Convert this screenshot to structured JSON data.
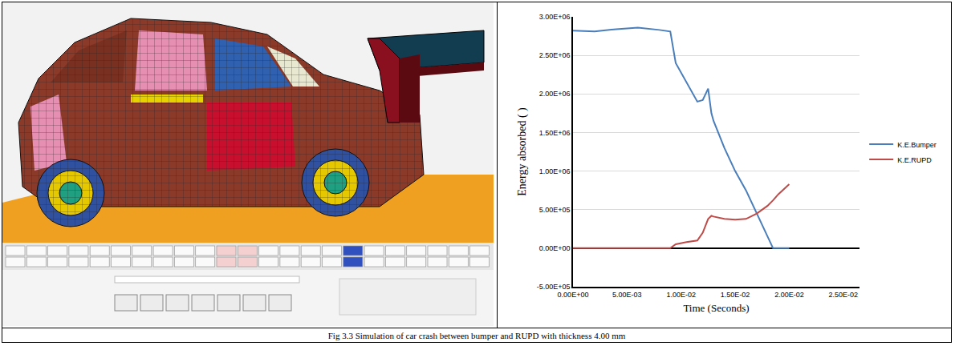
{
  "caption": "Fig 3.3 Simulation of car crash between bumper and RUPD with thickness 4.00 mm",
  "chart_data": {
    "type": "line",
    "x_label": "Time (Seconds)",
    "y_label": "Energy absorbed ( )",
    "x": [
      0,
      0.002,
      0.004,
      0.006,
      0.008,
      0.009,
      0.0095,
      0.0105,
      0.0115,
      0.012,
      0.0125,
      0.0128,
      0.013,
      0.014,
      0.015,
      0.016,
      0.017,
      0.018,
      0.0185,
      0.019,
      0.02
    ],
    "series": [
      {
        "name": "K.E.Bumper",
        "color": "#4a7ebb",
        "values": [
          2820000,
          2810000,
          2840000,
          2860000,
          2830000,
          2810000,
          2400000,
          2150000,
          1900000,
          1920000,
          2070000,
          1750000,
          1650000,
          1300000,
          1000000,
          750000,
          450000,
          150000,
          0,
          0,
          0
        ]
      },
      {
        "name": "K.E.RUPD",
        "color": "#be4b48",
        "values": [
          0,
          0,
          0,
          0,
          0,
          0,
          50000,
          80000,
          100000,
          200000,
          380000,
          420000,
          410000,
          380000,
          370000,
          380000,
          450000,
          550000,
          620000,
          700000,
          830000
        ]
      }
    ],
    "xlim": [
      0,
      0.0265
    ],
    "xticks": [
      {
        "value": 0,
        "label": "0.00E+00"
      },
      {
        "value": 0.005,
        "label": "5.00E-03"
      },
      {
        "value": 0.01,
        "label": "1.00E-02"
      },
      {
        "value": 0.015,
        "label": "1.50E-02"
      },
      {
        "value": 0.02,
        "label": "2.00E-02"
      },
      {
        "value": 0.025,
        "label": "2.50E-02"
      }
    ],
    "ylim": [
      -500000,
      3000000
    ],
    "yticks": [
      {
        "value": -500000,
        "label": "-5.00E+05"
      },
      {
        "value": 0,
        "label": "0.00E+00"
      },
      {
        "value": 500000,
        "label": "5.00E+05"
      },
      {
        "value": 1000000,
        "label": "1.00E+06"
      },
      {
        "value": 1500000,
        "label": "1.50E+06"
      },
      {
        "value": 2000000,
        "label": "2.00E+06"
      },
      {
        "value": 2500000,
        "label": "2.50E+06"
      },
      {
        "value": 3000000,
        "label": "3.00E+06"
      }
    ],
    "grid": true,
    "legend": "right"
  }
}
